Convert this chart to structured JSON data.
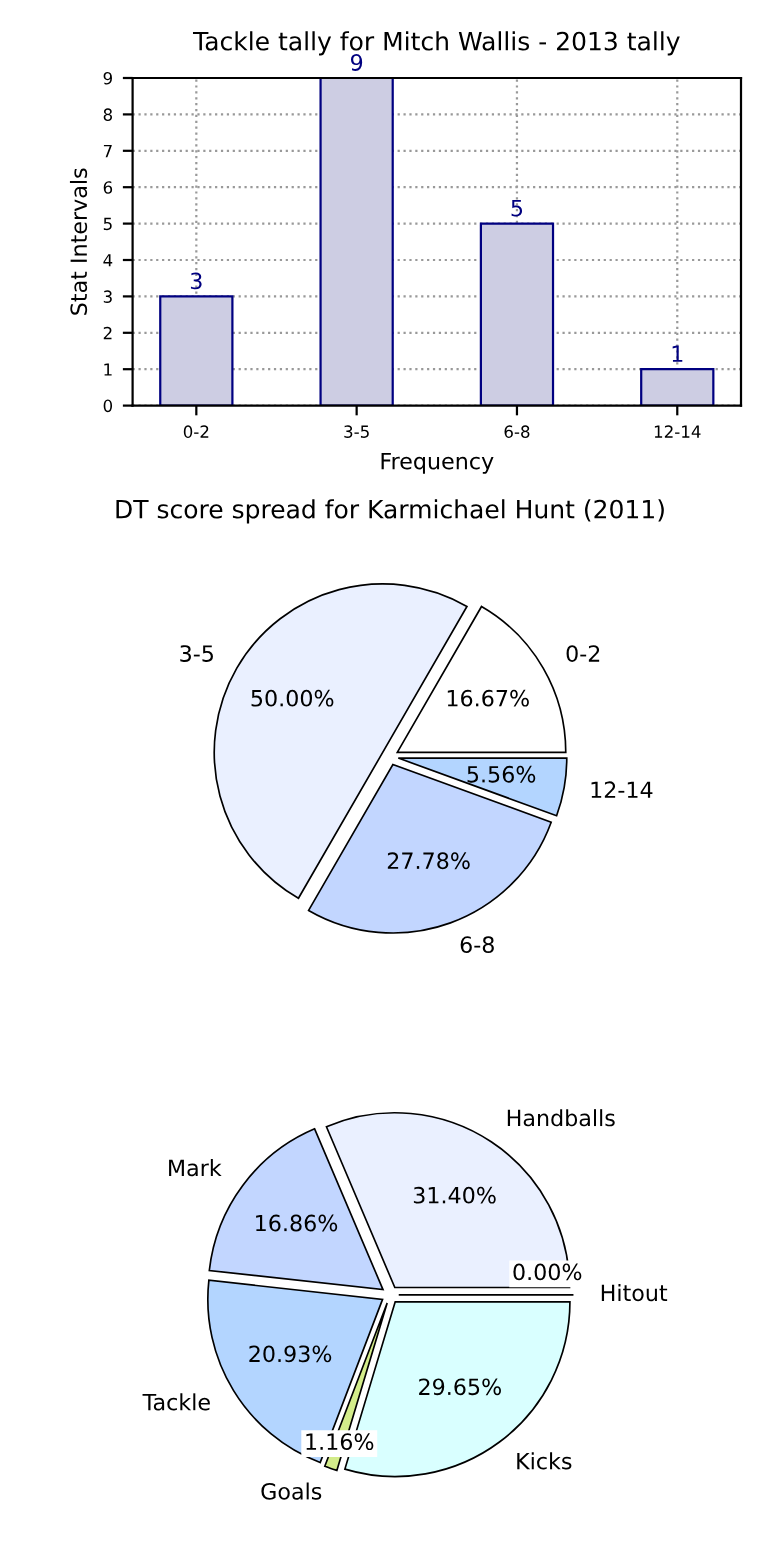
{
  "chart_data": [
    {
      "type": "bar",
      "title": "Tackle tally for Mitch Wallis - 2013 tally",
      "xlabel": "Frequency",
      "ylabel": "Stat Intervals",
      "categories": [
        "0-2",
        "3-5",
        "6-8",
        "12-14"
      ],
      "values": [
        3,
        9,
        5,
        1
      ],
      "color": "#cdcde3",
      "ylim": [
        0,
        9
      ],
      "yticks": [
        0,
        1,
        2,
        3,
        4,
        5,
        6,
        7,
        8,
        9
      ],
      "grid": true,
      "data_labels": true
    },
    {
      "type": "pie",
      "title": "DT score spread for Karmichael Hunt (2011)",
      "categories": [
        "0-2",
        "3-5",
        "6-8",
        "12-14"
      ],
      "values": [
        16.67,
        50.0,
        27.78,
        5.56
      ],
      "value_labels": [
        "16.67%",
        "50.00%",
        "27.78%",
        "5.56%"
      ],
      "colors": [
        "#ffffff",
        "#eaf0ff",
        "#c2d6ff",
        "#b3d5ff"
      ]
    },
    {
      "type": "pie",
      "categories": [
        "Handballs",
        "Mark",
        "Tackle",
        "Goals",
        "Kicks",
        "Hitout"
      ],
      "values": [
        31.4,
        16.86,
        20.93,
        1.16,
        29.65,
        0.0
      ],
      "value_labels": [
        "31.40%",
        "16.86%",
        "20.93%",
        "1.16%",
        "29.65%",
        "0.00%"
      ],
      "colors": [
        "#eaf0ff",
        "#c2d6ff",
        "#b3d5ff",
        "#d3ec8a",
        "#d9ffff",
        "#ffffff"
      ]
    }
  ]
}
